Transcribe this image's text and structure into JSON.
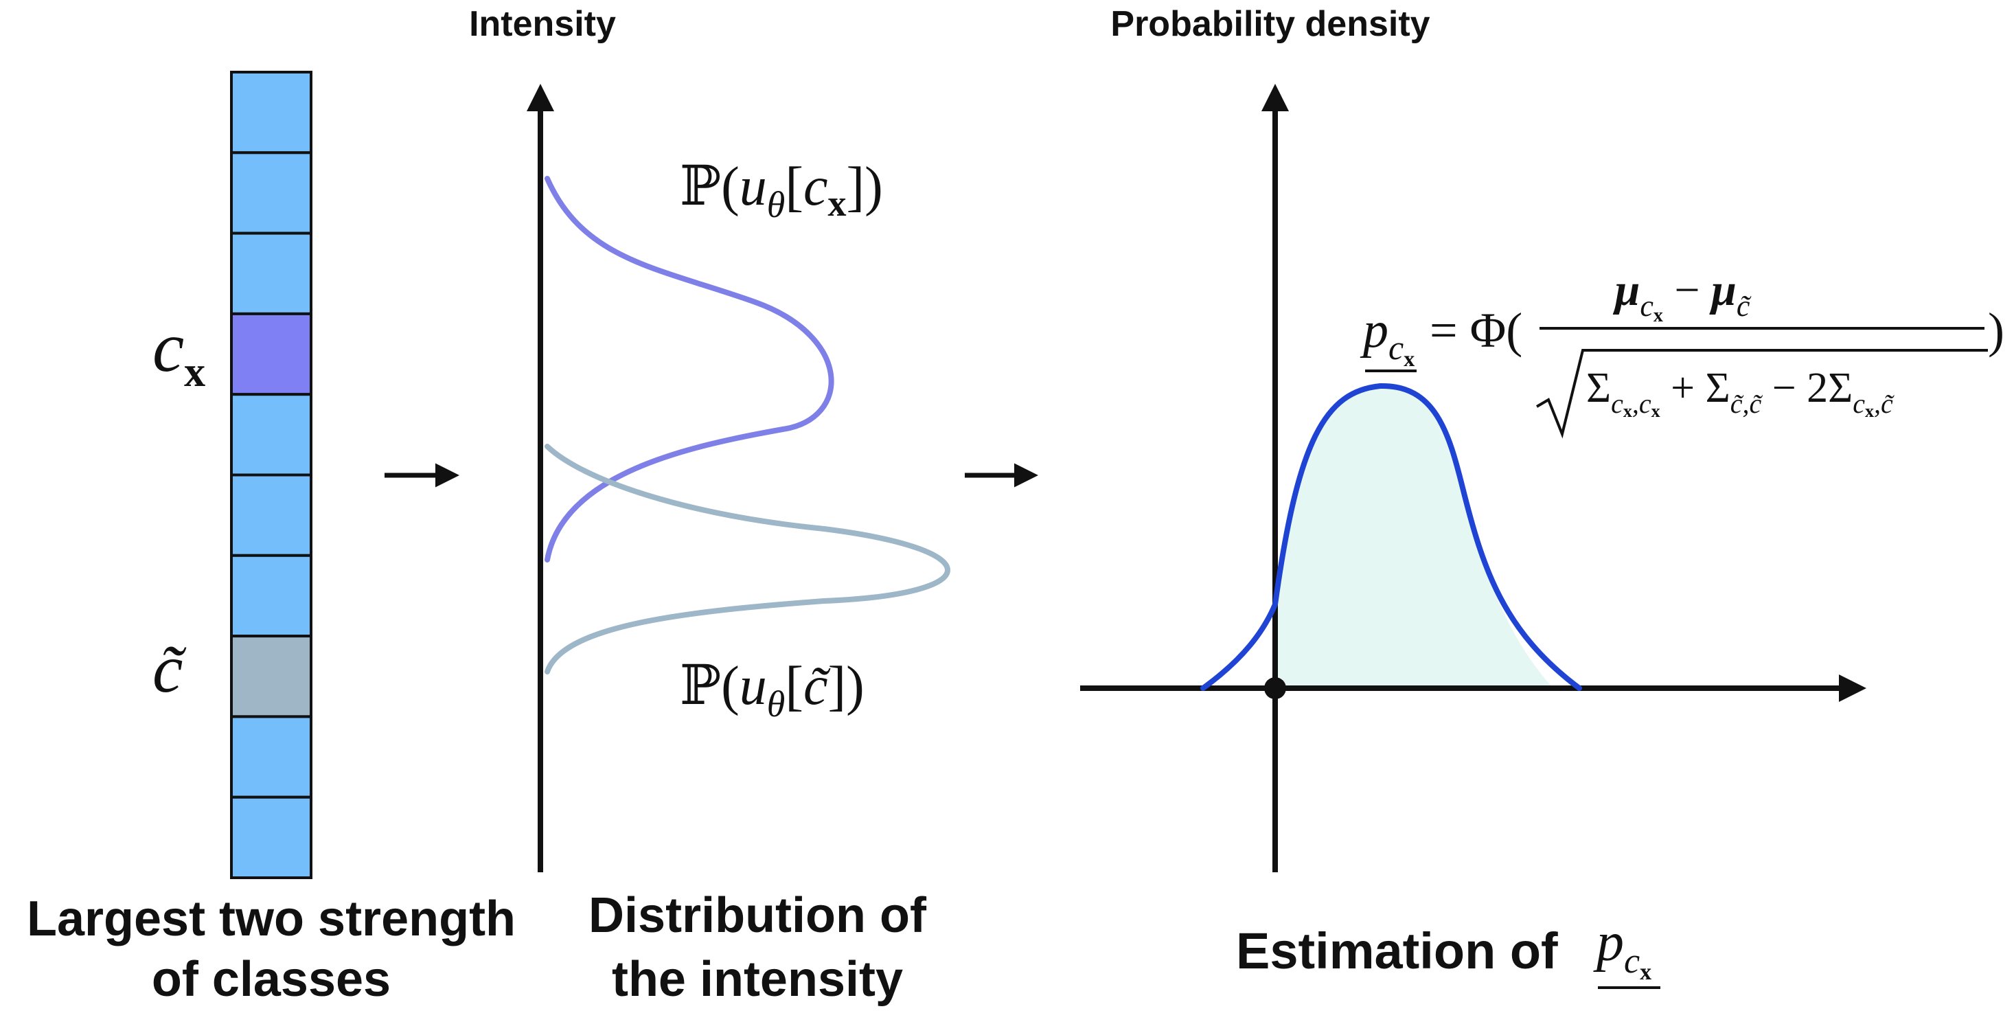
{
  "colors": {
    "cell": "#74bffb",
    "cell_stroke": "#111111",
    "highlight_cx": "#8080f5",
    "highlight_ctilde": "#9fb6c7",
    "curve_cx": "#7f7fe8",
    "curve_ctilde": "#9db6c8",
    "density_curve": "#1f44d4",
    "density_fill": "#e5f7f3",
    "axis": "#111111"
  },
  "vector": {
    "cell_count": 10,
    "cx_index": 3,
    "ctilde_index": 7,
    "label_cx_letter": "c",
    "label_cx_subscript": "x",
    "label_ctilde": "c̃",
    "caption_line1": "Largest two strength",
    "caption_line2": "of classes"
  },
  "distribution": {
    "axis_title": "Intensity",
    "formula_cx": {
      "prefix": "ℙ(",
      "u": "u",
      "theta": "θ",
      "open": "[",
      "c": "c",
      "x": "x",
      "close": "])"
    },
    "formula_ctilde": {
      "prefix": "ℙ(",
      "u": "u",
      "theta": "θ",
      "open": "[",
      "c": "c̃",
      "close": "])"
    },
    "caption_line1": "Distribution of",
    "caption_line2": "the intensity"
  },
  "estimation": {
    "axis_title": "Probability density",
    "formula": {
      "lhs_p": "p",
      "lhs_c": "c",
      "lhs_x": "x",
      "equals_phi": "= Φ(",
      "num_mu1": "μ",
      "num_c1": "c",
      "num_x1": "x",
      "num_minus": "−",
      "num_mu2": "μ",
      "num_c2": "c̃",
      "den_sigma1": "Σ",
      "den_sub1": "c",
      "den_sub1x": "x",
      "den_sub1b": ",c",
      "den_sub1bx": "x",
      "den_plus": "+",
      "den_sigma2": "Σ",
      "den_sub2": "c̃,c̃",
      "den_minus": "− 2Σ",
      "den_sub3": "c",
      "den_sub3x": "x",
      "den_sub3b": ",c̃",
      "close": ")"
    },
    "caption": "Estimation of",
    "caption_p": "p",
    "caption_c": "c",
    "caption_x": "x"
  }
}
